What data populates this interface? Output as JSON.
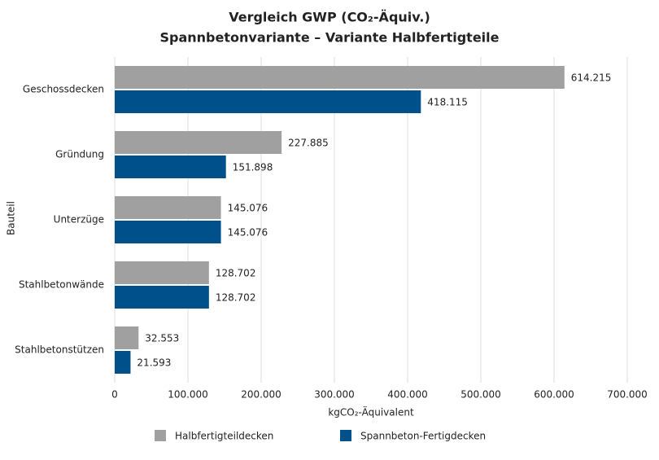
{
  "chart_data": {
    "type": "hbar",
    "title": "Vergleich GWP (CO₂-Äquiv.)",
    "subtitle": "Spannbetonvariante – Variante Halbfertigteile",
    "x_label": "kgCO₂-Äquivalent",
    "y_label": "Bauteil",
    "categories": [
      "Geschossdecken",
      "Gründung",
      "Unterzüge",
      "Stahlbetonwände",
      "Stahlbetonstützen"
    ],
    "series": [
      {
        "name": "Halbfertigteildecken",
        "color": "#a0a0a0",
        "values": [
          614215,
          227885,
          145076,
          128702,
          32553
        ],
        "value_labels": [
          "614.215",
          "227.885",
          "145.076",
          "128.702",
          "32.553"
        ]
      },
      {
        "name": "Spannbeton-Fertigdecken",
        "color": "#00508c",
        "values": [
          418115,
          151898,
          145076,
          128702,
          21593
        ],
        "value_labels": [
          "418.115",
          "151.898",
          "145.076",
          "128.702",
          "21.593"
        ]
      }
    ],
    "xlim": [
      0,
      700000
    ],
    "xticks": [
      0,
      {
        "value": 100000,
        "label": "100.000"
      },
      {
        "value": 200000,
        "label": "200.000"
      },
      {
        "value": 300000,
        "label": "300.000"
      },
      {
        "value": 400000,
        "label": "400.000"
      },
      {
        "value": 500000,
        "label": "500.000"
      },
      {
        "value": 600000,
        "label": "600.000"
      },
      {
        "value": 700000,
        "label": "700.000"
      }
    ],
    "grid": true,
    "legend": "bottom"
  }
}
